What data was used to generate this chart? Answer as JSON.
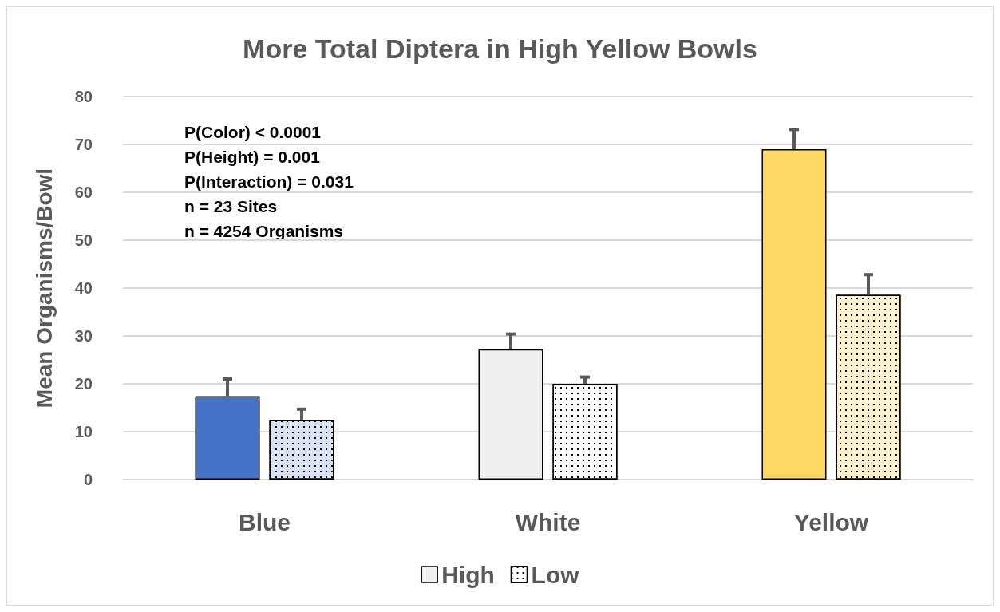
{
  "chart_data": {
    "type": "bar",
    "title": "More Total Diptera in High Yellow Bowls",
    "ylabel": "Mean Organisms/Bowl",
    "categories": [
      "Blue",
      "White",
      "Yellow"
    ],
    "series": [
      {
        "name": "High",
        "color": "#f0f0f0",
        "colors": [
          "#4472c4",
          "#f0f0f0",
          "#ffd966"
        ],
        "values": [
          17.4,
          27.2,
          69.0
        ],
        "errors": [
          [
            17.4,
            21.0
          ],
          [
            27.2,
            30.4
          ],
          [
            69.0,
            73.1
          ]
        ]
      },
      {
        "name": "Low",
        "color": "#ffffff",
        "colors": [
          "#dae3f3",
          "#ffffff",
          "#fff2cc"
        ],
        "values": [
          12.5,
          20.0,
          38.6
        ],
        "errors": [
          [
            12.5,
            14.7
          ],
          [
            20.0,
            21.4
          ],
          [
            38.6,
            42.8
          ]
        ]
      }
    ],
    "ylim": [
      0,
      80
    ],
    "yticks": [
      0,
      10,
      20,
      30,
      40,
      50,
      60,
      70,
      80
    ],
    "grid": "y",
    "legend": "bottom",
    "annotations": [
      "P(Color) < 0.0001",
      "P(Height) = 0.001",
      "P(Interaction) = 0.031",
      "n = 23 Sites",
      "n = 4254 Organisms"
    ]
  }
}
